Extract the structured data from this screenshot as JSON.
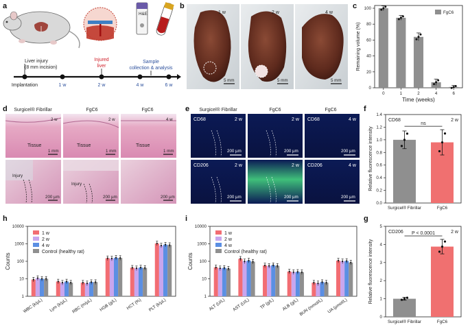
{
  "panel_labels": {
    "a": "a",
    "b": "b",
    "c": "c",
    "d": "d",
    "e": "e",
    "f": "f",
    "g": "g",
    "h": "h",
    "i": "i"
  },
  "panel_a": {
    "liver_injury": "Liver injury",
    "incision": "(8 mm incision)",
    "injured_liver_line1": "Injured",
    "injured_liver_line2": "liver",
    "sample_line1": "Sample",
    "sample_line2": "collection & analysis",
    "he_label": "H&E",
    "timeline": [
      "Implantation",
      "1 w",
      "2 w",
      "4 w",
      "6 w"
    ]
  },
  "panel_b": {
    "labels": [
      "1 w",
      "2 w",
      "4 w"
    ],
    "scale": "5 mm"
  },
  "panel_d": {
    "headers": [
      "Surgicel® Fibrillar",
      "FgC6",
      "FgC6"
    ],
    "times": [
      "2 w",
      "2 w",
      "4 w"
    ],
    "tissue": "Tissue",
    "injury": "Injury",
    "scale_top": "1 mm",
    "scale_bottom": "200 µm"
  },
  "panel_e": {
    "headers": [
      "Surgicel® Fibrillar",
      "FgC6",
      "FgC6"
    ],
    "row1_marker": "CD68",
    "row2_marker": "CD206",
    "times": [
      "2 w",
      "2 w",
      "4 w"
    ],
    "scale": "200 µm"
  },
  "chart_data": [
    {
      "id": "c",
      "type": "bar",
      "title": "",
      "xlabel": "Time (weeks)",
      "ylabel": "Remaining volume (%)",
      "categories": [
        "0",
        "1",
        "2",
        "4",
        "6"
      ],
      "values": [
        100,
        88,
        64,
        7,
        1
      ],
      "errors": [
        3,
        3,
        5,
        4,
        2
      ],
      "ylim": [
        0,
        100
      ],
      "yticks": [
        "0",
        "20",
        "40",
        "60",
        "80",
        "100"
      ],
      "legend": [
        "FgC6"
      ],
      "colors": [
        "#8f8f8f"
      ]
    },
    {
      "id": "f",
      "type": "bar",
      "title": "CD68",
      "time_label": "2 w",
      "xlabel": "",
      "ylabel": "Relative fluorescence intensity",
      "categories": [
        "Surgicel® Fibrillar",
        "FgC6"
      ],
      "values": [
        1.0,
        0.96
      ],
      "errors": [
        0.14,
        0.2
      ],
      "ylim": [
        0.0,
        1.4
      ],
      "yticks": [
        "0.0",
        "0.2",
        "0.4",
        "0.6",
        "0.8",
        "1.0",
        "1.2",
        "1.4"
      ],
      "annotation": "ns",
      "colors": [
        "#8f8f8f",
        "#f07070"
      ]
    },
    {
      "id": "g",
      "type": "bar",
      "title": "CD206",
      "time_label": "2 w",
      "xlabel": "",
      "ylabel": "Relative fluorescence intensity",
      "categories": [
        "Surgicel® Fibrillar",
        "FgC6"
      ],
      "values": [
        1.0,
        3.88
      ],
      "errors": [
        0.08,
        0.4
      ],
      "ylim": [
        0,
        5
      ],
      "yticks": [
        "0",
        "1",
        "2",
        "3",
        "4",
        "5"
      ],
      "annotation": "P < 0.0001",
      "colors": [
        "#8f8f8f",
        "#f07070"
      ]
    },
    {
      "id": "h",
      "type": "bar",
      "scale": "log",
      "xlabel": "",
      "ylabel": "Counts",
      "categories": [
        "WBC (k/µL)",
        "Lym (k/µL)",
        "RBC (m/µL)",
        "HGB (g/L)",
        "HCT (%)",
        "PLT (k/µL)"
      ],
      "yticks": [
        "1",
        "10",
        "100",
        "1000",
        "10000"
      ],
      "series": [
        {
          "name": "1 w",
          "values": [
            9,
            7,
            6,
            150,
            43,
            1050
          ],
          "color": "#f26d73"
        },
        {
          "name": "2 w",
          "values": [
            11,
            6,
            5.5,
            145,
            40,
            800
          ],
          "color": "#c8a6ee"
        },
        {
          "name": "4 w",
          "values": [
            10,
            7,
            6.5,
            160,
            44,
            900
          ],
          "color": "#5b8fe3"
        },
        {
          "name": "Control (healthy rat)",
          "values": [
            10,
            6,
            6.5,
            155,
            42,
            850
          ],
          "color": "#8f8f8f"
        }
      ]
    },
    {
      "id": "i",
      "type": "bar",
      "scale": "log",
      "xlabel": "",
      "ylabel": "Counts",
      "categories": [
        "ALT (U/L)",
        "AST (U/L)",
        "TP (g/L)",
        "ALB (g/L)",
        "BUN (mmol/L)",
        "UA (µmol/L)"
      ],
      "yticks": [
        "1",
        "10",
        "100",
        "1000",
        "10000"
      ],
      "series": [
        {
          "name": "1 w",
          "values": [
            45,
            140,
            58,
            26,
            6,
            110
          ],
          "color": "#f26d73"
        },
        {
          "name": "2 w",
          "values": [
            40,
            100,
            55,
            24,
            5.5,
            100
          ],
          "color": "#c8a6ee"
        },
        {
          "name": "4 w",
          "values": [
            42,
            110,
            60,
            25,
            6.5,
            105
          ],
          "color": "#5b8fe3"
        },
        {
          "name": "Control (healthy rat)",
          "values": [
            38,
            95,
            55,
            24,
            6,
            85
          ],
          "color": "#8f8f8f"
        }
      ]
    }
  ]
}
